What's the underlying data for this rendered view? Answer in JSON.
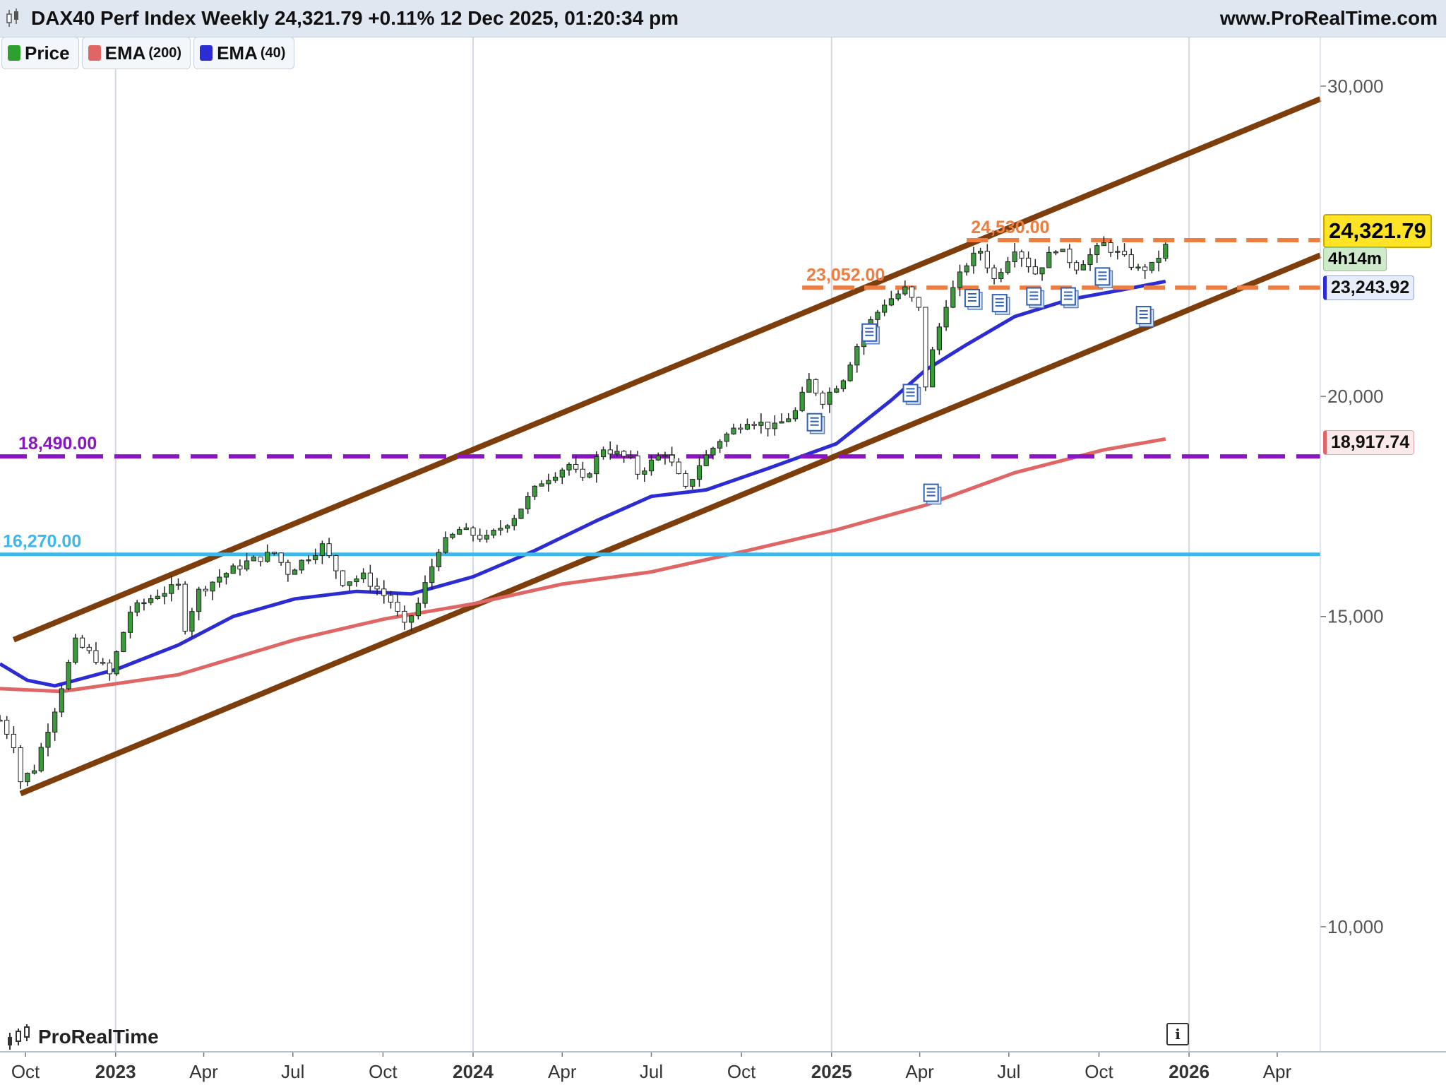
{
  "header": {
    "title": "DAX40 Perf Index Weekly 24,321.79 +0.11% 12 Dec 2025, 01:20:34 pm",
    "site": "www.ProRealTime.com"
  },
  "legend": [
    {
      "label": "Price",
      "sub": "",
      "color": "#2ea02e"
    },
    {
      "label": "EMA",
      "sub": "(200)",
      "color": "#e06666"
    },
    {
      "label": "EMA",
      "sub": "(40)",
      "color": "#2c2cd4"
    }
  ],
  "tags": {
    "price": "24,321.79",
    "timer": "4h14m",
    "ema40": "23,243.92",
    "ema200": "18,917.74"
  },
  "footer": {
    "brand": "ProRealTime",
    "info": "i"
  },
  "chart_data": {
    "type": "candlestick",
    "title": "DAX40 Perf Index Weekly",
    "y_scale": "log",
    "ylim": [
      8500,
      32000
    ],
    "y_ticks": [
      {
        "value": 10000,
        "label": "10,000"
      },
      {
        "value": 15000,
        "label": "15,000"
      },
      {
        "value": 20000,
        "label": "20,000"
      },
      {
        "value": 30000,
        "label": "30,000"
      }
    ],
    "x_range": [
      "2022-09-05",
      "2026-05-15"
    ],
    "x_ticks": [
      {
        "date": "2022-10-01",
        "label": "Oct"
      },
      {
        "date": "2023-01-01",
        "label": "2023"
      },
      {
        "date": "2023-04-01",
        "label": "Apr"
      },
      {
        "date": "2023-07-01",
        "label": "Jul"
      },
      {
        "date": "2023-10-01",
        "label": "Oct"
      },
      {
        "date": "2024-01-01",
        "label": "2024"
      },
      {
        "date": "2024-04-01",
        "label": "Apr"
      },
      {
        "date": "2024-07-01",
        "label": "Jul"
      },
      {
        "date": "2024-10-01",
        "label": "Oct"
      },
      {
        "date": "2025-01-01",
        "label": "2025"
      },
      {
        "date": "2025-04-01",
        "label": "Apr"
      },
      {
        "date": "2025-07-01",
        "label": "Jul"
      },
      {
        "date": "2025-10-01",
        "label": "Oct"
      },
      {
        "date": "2026-01-01",
        "label": "2026"
      },
      {
        "date": "2026-04-01",
        "label": "Apr"
      }
    ],
    "price_anchors": [
      [
        "2022-09-05",
        13100
      ],
      [
        "2022-09-19",
        12700
      ],
      [
        "2022-09-26",
        12100
      ],
      [
        "2022-10-10",
        12300
      ],
      [
        "2022-10-31",
        13300
      ],
      [
        "2022-11-21",
        14500
      ],
      [
        "2022-12-12",
        14200
      ],
      [
        "2022-12-26",
        13900
      ],
      [
        "2023-01-16",
        15100
      ],
      [
        "2023-02-13",
        15450
      ],
      [
        "2023-03-06",
        15600
      ],
      [
        "2023-03-13",
        14800
      ],
      [
        "2023-03-27",
        15500
      ],
      [
        "2023-04-17",
        15800
      ],
      [
        "2023-05-15",
        16100
      ],
      [
        "2023-06-12",
        16300
      ],
      [
        "2023-06-26",
        15900
      ],
      [
        "2023-07-31",
        16450
      ],
      [
        "2023-08-21",
        15700
      ],
      [
        "2023-09-11",
        15800
      ],
      [
        "2023-10-09",
        15300
      ],
      [
        "2023-10-23",
        14800
      ],
      [
        "2023-11-06",
        15250
      ],
      [
        "2023-11-27",
        16400
      ],
      [
        "2023-12-18",
        16800
      ],
      [
        "2024-01-15",
        16600
      ],
      [
        "2024-02-12",
        17100
      ],
      [
        "2024-03-11",
        17900
      ],
      [
        "2024-04-08",
        18300
      ],
      [
        "2024-04-22",
        17900
      ],
      [
        "2024-05-13",
        18700
      ],
      [
        "2024-06-10",
        18400
      ],
      [
        "2024-06-17",
        18100
      ],
      [
        "2024-07-15",
        18600
      ],
      [
        "2024-08-05",
        17700
      ],
      [
        "2024-08-19",
        18300
      ],
      [
        "2024-09-09",
        18900
      ],
      [
        "2024-10-07",
        19400
      ],
      [
        "2024-11-04",
        19200
      ],
      [
        "2024-11-25",
        19600
      ],
      [
        "2024-12-09",
        20400
      ],
      [
        "2024-12-23",
        19900
      ],
      [
        "2025-01-13",
        20500
      ],
      [
        "2025-02-03",
        21800
      ],
      [
        "2025-02-24",
        22600
      ],
      [
        "2025-03-17",
        23000
      ],
      [
        "2025-03-31",
        22400
      ],
      [
        "2025-04-07",
        20300
      ],
      [
        "2025-04-14",
        21200
      ],
      [
        "2025-04-28",
        22600
      ],
      [
        "2025-05-19",
        23800
      ],
      [
        "2025-06-02",
        24200
      ],
      [
        "2025-06-16",
        23300
      ],
      [
        "2025-07-07",
        24300
      ],
      [
        "2025-07-28",
        23500
      ],
      [
        "2025-08-18",
        24300
      ],
      [
        "2025-09-08",
        23700
      ],
      [
        "2025-10-06",
        24400
      ],
      [
        "2025-10-20",
        24100
      ],
      [
        "2025-11-10",
        23600
      ],
      [
        "2025-11-24",
        23700
      ],
      [
        "2025-12-08",
        24321.79
      ]
    ],
    "series": [
      {
        "name": "EMA (200)",
        "color": "#e06666",
        "points": [
          [
            "2022-09-05",
            13650
          ],
          [
            "2022-11-07",
            13600
          ],
          [
            "2023-03-06",
            13900
          ],
          [
            "2023-07-03",
            14550
          ],
          [
            "2023-10-02",
            14950
          ],
          [
            "2024-01-01",
            15250
          ],
          [
            "2024-04-01",
            15650
          ],
          [
            "2024-07-01",
            15900
          ],
          [
            "2024-10-07",
            16350
          ],
          [
            "2025-01-06",
            16800
          ],
          [
            "2025-04-07",
            17350
          ],
          [
            "2025-07-07",
            18100
          ],
          [
            "2025-10-06",
            18650
          ],
          [
            "2025-12-08",
            18917.74
          ]
        ]
      },
      {
        "name": "EMA (40)",
        "color": "#2c2cd4",
        "points": [
          [
            "2022-09-05",
            14100
          ],
          [
            "2022-10-03",
            13800
          ],
          [
            "2022-10-31",
            13700
          ],
          [
            "2023-01-02",
            14000
          ],
          [
            "2023-03-06",
            14450
          ],
          [
            "2023-05-01",
            15000
          ],
          [
            "2023-07-03",
            15350
          ],
          [
            "2023-09-04",
            15500
          ],
          [
            "2023-10-30",
            15450
          ],
          [
            "2024-01-01",
            15800
          ],
          [
            "2024-03-04",
            16350
          ],
          [
            "2024-05-06",
            17000
          ],
          [
            "2024-07-01",
            17550
          ],
          [
            "2024-08-26",
            17700
          ],
          [
            "2024-10-28",
            18200
          ],
          [
            "2025-01-06",
            18800
          ],
          [
            "2025-03-03",
            19900
          ],
          [
            "2025-04-07",
            20700
          ],
          [
            "2025-05-19",
            21400
          ],
          [
            "2025-07-07",
            22200
          ],
          [
            "2025-09-01",
            22700
          ],
          [
            "2025-10-27",
            23000
          ],
          [
            "2025-12-08",
            23243.92
          ]
        ]
      }
    ],
    "levels": [
      {
        "value": 24530,
        "label": "24,530.00",
        "color": "#f07d40",
        "style": "dashed",
        "from": "2025-05-19"
      },
      {
        "value": 23052,
        "label": "23,052.00",
        "color": "#f07d40",
        "style": "dashed",
        "from": "2024-12-02"
      },
      {
        "value": 18490,
        "label": "18,490.00",
        "color": "#8a15c4",
        "style": "dashed",
        "from": "2022-09-05"
      },
      {
        "value": 16270,
        "label": "16,270.00",
        "color": "#3cb8ec",
        "style": "solid",
        "from": "2022-09-05"
      }
    ],
    "trend_channel": {
      "color": "#7d3e0c",
      "upper": [
        [
          "2022-09-19",
          14550
        ],
        [
          "2026-05-15",
          29500
        ]
      ],
      "lower": [
        [
          "2022-09-26",
          11900
        ],
        [
          "2026-05-15",
          24050
        ]
      ]
    },
    "last": {
      "value": 24321.79,
      "change": "+0.11%"
    }
  }
}
